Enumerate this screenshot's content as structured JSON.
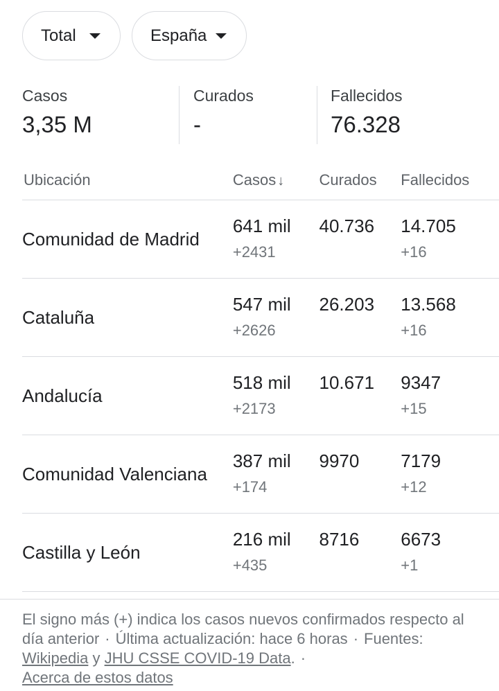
{
  "filters": {
    "metric": "Total",
    "region": "España"
  },
  "summary": {
    "cases": {
      "label": "Casos",
      "value": "3,35 M"
    },
    "recovered": {
      "label": "Curados",
      "value": "-"
    },
    "deaths": {
      "label": "Fallecidos",
      "value": "76.328"
    }
  },
  "table": {
    "headers": {
      "location": "Ubicación",
      "cases": "Casos",
      "sort_arrow": "↓",
      "recovered": "Curados",
      "deaths": "Fallecidos"
    },
    "rows": [
      {
        "location": "Comunidad de Madrid",
        "cases": "641 mil",
        "cases_new": "+2431",
        "recovered": "40.736",
        "deaths": "14.705",
        "deaths_new": "+16"
      },
      {
        "location": "Cataluña",
        "cases": "547 mil",
        "cases_new": "+2626",
        "recovered": "26.203",
        "deaths": "13.568",
        "deaths_new": "+16"
      },
      {
        "location": "Andalucía",
        "cases": "518 mil",
        "cases_new": "+2173",
        "recovered": "10.671",
        "deaths": "9347",
        "deaths_new": "+15"
      },
      {
        "location": "Comunidad Valenciana",
        "cases": "387 mil",
        "cases_new": "+174",
        "recovered": "9970",
        "deaths": "7179",
        "deaths_new": "+12"
      },
      {
        "location": "Castilla y León",
        "cases": "216 mil",
        "cases_new": "+435",
        "recovered": "8716",
        "deaths": "6673",
        "deaths_new": "+1"
      }
    ]
  },
  "footnote": {
    "text1": "El signo más (+) indica los casos nuevos confirmados respecto al día anterior",
    "sep": "·",
    "text2": "Última actualización: hace 6 horas",
    "sources_prefix": "Fuentes:",
    "source1": "Wikipedia",
    "and": "y",
    "source2": "JHU CSSE COVID-19 Data",
    "period": ".",
    "about": "Acerca de estos datos"
  }
}
